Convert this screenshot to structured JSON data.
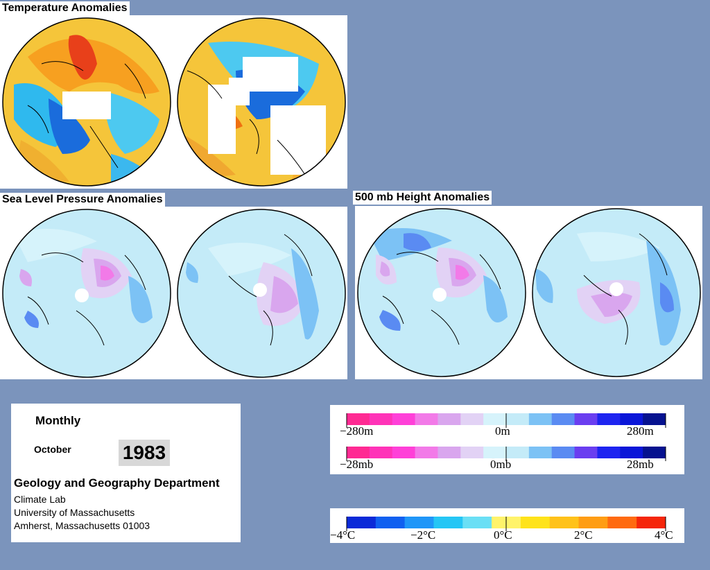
{
  "sections": {
    "temperature_title": "Temperature Anomalies",
    "slp_title": "Sea Level Pressure Anomalies",
    "height_title": "500 mb Height Anomalies"
  },
  "info": {
    "period": "Monthly",
    "month": "October",
    "year": "1983",
    "department": "Geology and Geography Department",
    "lab": "Climate Lab",
    "university": "University of Massachusetts",
    "address": "Amherst, Massachusetts 01003"
  },
  "scales": {
    "height": {
      "min_label": "−280m",
      "mid_label": "0m",
      "max_label": "280m"
    },
    "pressure": {
      "min_label": "−28mb",
      "mid_label": "0mb",
      "max_label": "28mb"
    },
    "temperature": {
      "labels": [
        "−4°C",
        "−2°C",
        "0°C",
        "2°C",
        "4°C"
      ]
    }
  },
  "colors": {
    "background": "#7b94bc",
    "anomaly_scale": [
      "#ff2a93",
      "#ff33b8",
      "#ff40d8",
      "#f27ae8",
      "#d9a6ee",
      "#e2d2f5",
      "#d6f3fb",
      "#c4ebf8",
      "#7cc2f5",
      "#5a8bf2",
      "#6a3ef0",
      "#1e24f0",
      "#0a16d8",
      "#06128f"
    ],
    "temperature_scale": [
      "#0b2ad8",
      "#1060f0",
      "#1f96f8",
      "#25c6f5",
      "#6adff5",
      "#fff36a",
      "#ffe31a",
      "#ffc21a",
      "#ff9d14",
      "#ff6a10",
      "#f5260a"
    ]
  }
}
